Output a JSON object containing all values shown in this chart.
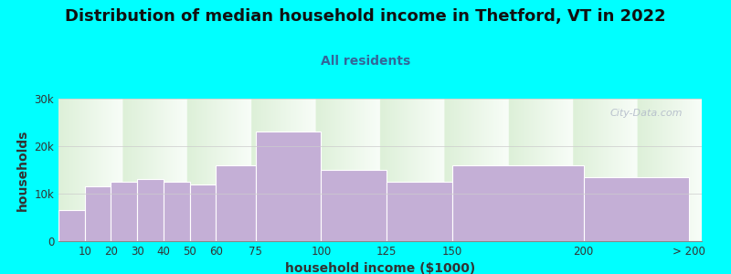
{
  "title": "Distribution of median household income in Thetford, VT in 2022",
  "subtitle": "All residents",
  "xlabel": "household income ($1000)",
  "ylabel": "households",
  "background_color": "#00FFFF",
  "plot_bg_gradient_top": "#ddf0d8",
  "plot_bg_gradient_bottom": "#f8fdf8",
  "bar_color": "#c4afd6",
  "bar_edge_color": "#ffffff",
  "left_edges": [
    0,
    10,
    20,
    30,
    40,
    50,
    60,
    75,
    100,
    125,
    150,
    200
  ],
  "right_edges": [
    10,
    20,
    30,
    40,
    50,
    60,
    75,
    100,
    125,
    150,
    200,
    240
  ],
  "tick_positions": [
    10,
    20,
    30,
    40,
    50,
    60,
    75,
    100,
    125,
    150,
    200,
    240
  ],
  "tick_labels": [
    "10",
    "20",
    "30",
    "40",
    "50",
    "60",
    "75",
    "100",
    "125",
    "150",
    "200",
    "> 200"
  ],
  "values": [
    6500,
    11500,
    12500,
    13000,
    12500,
    12000,
    16000,
    23000,
    15000,
    12500,
    16000,
    13500
  ],
  "xlim": [
    0,
    245
  ],
  "ylim": [
    0,
    30000
  ],
  "yticks": [
    0,
    10000,
    20000,
    30000
  ],
  "ytick_labels": [
    "0",
    "10k",
    "20k",
    "30k"
  ],
  "title_fontsize": 13,
  "subtitle_fontsize": 10,
  "axis_label_fontsize": 10,
  "tick_fontsize": 8.5,
  "watermark_text": "City-Data.com",
  "grid_color": "#cccccc",
  "title_color": "#111111",
  "subtitle_color": "#336699",
  "axis_label_color": "#333333"
}
